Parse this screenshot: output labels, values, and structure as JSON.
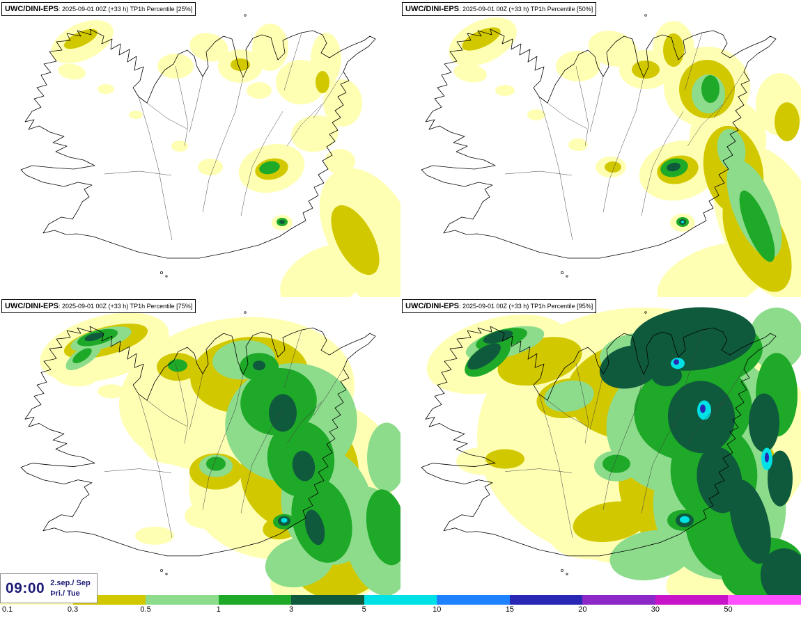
{
  "panels": [
    {
      "key": "25",
      "model": "UWC/DINI-EPS",
      "title": ": 2025-09-01 00Z (+33 h) TP1h Percentile [25%]",
      "blobs": [
        [
          0,
          118,
          60,
          48,
          26,
          -25
        ],
        [
          0,
          103,
          103,
          20,
          11,
          10
        ],
        [
          0,
          152,
          128,
          12,
          7,
          0
        ],
        [
          0,
          252,
          95,
          26,
          18,
          0
        ],
        [
          0,
          300,
          68,
          28,
          20,
          15
        ],
        [
          0,
          345,
          95,
          32,
          24,
          0
        ],
        [
          0,
          388,
          68,
          26,
          34,
          0
        ],
        [
          0,
          372,
          130,
          18,
          12,
          0
        ],
        [
          0,
          432,
          118,
          36,
          32,
          0
        ],
        [
          0,
          468,
          85,
          22,
          38,
          0
        ],
        [
          0,
          492,
          148,
          28,
          34,
          0
        ],
        [
          0,
          452,
          192,
          34,
          26,
          -10
        ],
        [
          0,
          488,
          232,
          22,
          18,
          0
        ],
        [
          0,
          390,
          242,
          48,
          34,
          -15
        ],
        [
          0,
          302,
          240,
          18,
          12,
          0
        ],
        [
          0,
          258,
          210,
          12,
          8,
          0
        ],
        [
          0,
          528,
          330,
          60,
          95,
          -28
        ],
        [
          0,
          468,
          398,
          70,
          42,
          -25
        ],
        [
          0,
          548,
          408,
          40,
          30,
          0
        ],
        [
          0,
          405,
          320,
          15,
          11,
          0
        ],
        [
          0,
          195,
          165,
          10,
          6,
          0
        ],
        [
          1,
          116,
          56,
          26,
          10,
          -25
        ],
        [
          1,
          345,
          93,
          14,
          9,
          0
        ],
        [
          1,
          390,
          243,
          24,
          15,
          -12
        ],
        [
          1,
          510,
          345,
          26,
          55,
          -28
        ],
        [
          1,
          463,
          118,
          10,
          16,
          0
        ],
        [
          3,
          387,
          241,
          15,
          9,
          -12
        ],
        [
          3,
          405,
          319,
          8,
          6,
          0
        ],
        [
          4,
          405,
          319,
          4,
          3,
          0
        ]
      ]
    },
    {
      "key": "50",
      "model": "UWC/DINI-EPS",
      "title": ": 2025-09-01 00Z (+33 h) TP1h Percentile [50%]",
      "blobs": [
        [
          0,
          118,
          60,
          52,
          30,
          -25
        ],
        [
          0,
          100,
          105,
          24,
          13,
          10
        ],
        [
          0,
          150,
          130,
          14,
          8,
          0
        ],
        [
          0,
          255,
          95,
          32,
          22,
          0
        ],
        [
          0,
          305,
          70,
          36,
          25,
          15
        ],
        [
          0,
          352,
          100,
          38,
          28,
          0
        ],
        [
          0,
          392,
          72,
          30,
          42,
          0
        ],
        [
          0,
          440,
          125,
          62,
          58,
          0
        ],
        [
          0,
          470,
          200,
          55,
          60,
          -10
        ],
        [
          0,
          400,
          245,
          58,
          42,
          -15
        ],
        [
          0,
          302,
          240,
          22,
          15,
          0
        ],
        [
          0,
          255,
          208,
          14,
          9,
          0
        ],
        [
          0,
          530,
          320,
          70,
          120,
          -25
        ],
        [
          0,
          450,
          400,
          85,
          45,
          -20
        ],
        [
          0,
          405,
          320,
          18,
          13,
          0
        ],
        [
          0,
          195,
          165,
          13,
          8,
          0
        ],
        [
          0,
          545,
          150,
          35,
          45,
          0
        ],
        [
          1,
          116,
          56,
          30,
          12,
          -25
        ],
        [
          1,
          352,
          100,
          20,
          13,
          0
        ],
        [
          1,
          392,
          72,
          15,
          24,
          0
        ],
        [
          1,
          440,
          128,
          40,
          42,
          0
        ],
        [
          1,
          478,
          245,
          42,
          65,
          -12
        ],
        [
          1,
          512,
          345,
          40,
          80,
          -25
        ],
        [
          1,
          398,
          244,
          30,
          20,
          -12
        ],
        [
          1,
          305,
          240,
          12,
          8,
          0
        ],
        [
          1,
          555,
          175,
          18,
          28,
          0
        ],
        [
          2,
          508,
          300,
          30,
          75,
          -22
        ],
        [
          2,
          442,
          135,
          24,
          28,
          0
        ],
        [
          2,
          475,
          215,
          20,
          30,
          -10
        ],
        [
          3,
          393,
          241,
          20,
          13,
          -12
        ],
        [
          3,
          445,
          128,
          13,
          20,
          0
        ],
        [
          3,
          512,
          325,
          16,
          55,
          -22
        ],
        [
          3,
          405,
          319,
          9,
          7,
          0
        ],
        [
          4,
          392,
          240,
          10,
          6,
          -12
        ],
        [
          4,
          405,
          319,
          5,
          4,
          0
        ],
        [
          5,
          405,
          319,
          2.2,
          1.8,
          0
        ]
      ]
    },
    {
      "key": "75",
      "model": "UWC/DINI-EPS",
      "title": ": 2025-09-01 00Z (+33 h) TP1h Percentile [75%]",
      "blobs": [
        [
          0,
          340,
          140,
          170,
          110,
          -8
        ],
        [
          0,
          420,
          260,
          150,
          115,
          -12
        ],
        [
          0,
          150,
          72,
          95,
          45,
          -15
        ],
        [
          0,
          108,
          112,
          32,
          16,
          5
        ],
        [
          0,
          250,
          212,
          45,
          28,
          0
        ],
        [
          0,
          300,
          312,
          35,
          20,
          -5
        ],
        [
          0,
          222,
          342,
          28,
          13,
          0
        ],
        [
          0,
          480,
          390,
          95,
          50,
          -18
        ],
        [
          0,
          160,
          135,
          20,
          10,
          0
        ],
        [
          1,
          152,
          63,
          62,
          20,
          -15
        ],
        [
          1,
          358,
          112,
          85,
          55,
          -5
        ],
        [
          1,
          430,
          250,
          85,
          85,
          -10
        ],
        [
          1,
          492,
          370,
          75,
          60,
          -22
        ],
        [
          1,
          310,
          250,
          38,
          26,
          0
        ],
        [
          1,
          405,
          330,
          28,
          17,
          -10
        ],
        [
          1,
          255,
          100,
          30,
          20,
          0
        ],
        [
          2,
          418,
          180,
          95,
          85,
          -10
        ],
        [
          2,
          470,
          300,
          65,
          85,
          -15
        ],
        [
          2,
          350,
          90,
          45,
          28,
          -5
        ],
        [
          2,
          145,
          60,
          45,
          14,
          -15
        ],
        [
          2,
          310,
          242,
          24,
          16,
          0
        ],
        [
          2,
          430,
          380,
          50,
          35,
          -15
        ],
        [
          2,
          540,
          350,
          45,
          80,
          -15
        ],
        [
          2,
          555,
          230,
          28,
          50,
          0
        ],
        [
          2,
          120,
          85,
          30,
          12,
          -35
        ],
        [
          3,
          400,
          150,
          55,
          48,
          -10
        ],
        [
          3,
          432,
          232,
          48,
          55,
          -10
        ],
        [
          3,
          462,
          320,
          42,
          62,
          -15
        ],
        [
          3,
          372,
          100,
          28,
          20,
          0
        ],
        [
          3,
          140,
          58,
          30,
          10,
          -15
        ],
        [
          3,
          310,
          239,
          14,
          10,
          0
        ],
        [
          3,
          408,
          322,
          16,
          11,
          0
        ],
        [
          3,
          255,
          98,
          14,
          9,
          0
        ],
        [
          3,
          555,
          330,
          28,
          55,
          -10
        ],
        [
          3,
          118,
          84,
          16,
          7,
          -35
        ],
        [
          4,
          406,
          166,
          20,
          27,
          0
        ],
        [
          4,
          436,
          242,
          16,
          22,
          -10
        ],
        [
          4,
          452,
          330,
          13,
          26,
          -15
        ],
        [
          4,
          408,
          321,
          9,
          7,
          0
        ],
        [
          4,
          372,
          98,
          9,
          7,
          0
        ],
        [
          4,
          135,
          57,
          14,
          5,
          -15
        ],
        [
          5,
          408,
          320,
          4.5,
          3.5,
          0
        ]
      ]
    },
    {
      "key": "95",
      "model": "UWC/DINI-EPS",
      "title": ": 2025-09-01 00Z (+33 h) TP1h Percentile [95%]",
      "blobs": [
        [
          0,
          350,
          200,
          240,
          185,
          0
        ],
        [
          0,
          140,
          82,
          105,
          52,
          -15
        ],
        [
          0,
          298,
          332,
          85,
          42,
          -10
        ],
        [
          0,
          480,
          400,
          100,
          42,
          -10
        ],
        [
          0,
          120,
          235,
          40,
          20,
          0
        ],
        [
          1,
          362,
          132,
          125,
          75,
          -5
        ],
        [
          1,
          428,
          262,
          115,
          105,
          -10
        ],
        [
          1,
          200,
          92,
          62,
          32,
          -15
        ],
        [
          1,
          302,
          322,
          55,
          28,
          -10
        ],
        [
          1,
          150,
          232,
          28,
          14,
          0
        ],
        [
          1,
          240,
          145,
          45,
          28,
          -10
        ],
        [
          2,
          420,
          180,
          125,
          105,
          -10
        ],
        [
          2,
          458,
          300,
          95,
          105,
          -10
        ],
        [
          2,
          348,
          82,
          62,
          32,
          -5
        ],
        [
          2,
          150,
          66,
          58,
          20,
          -15
        ],
        [
          2,
          242,
          142,
          36,
          22,
          -10
        ],
        [
          2,
          310,
          242,
          32,
          22,
          0
        ],
        [
          2,
          360,
          370,
          60,
          35,
          -10
        ],
        [
          2,
          540,
          60,
          40,
          45,
          0
        ],
        [
          3,
          420,
          162,
          85,
          72,
          -10
        ],
        [
          3,
          450,
          252,
          62,
          72,
          -10
        ],
        [
          3,
          462,
          330,
          52,
          72,
          -15
        ],
        [
          3,
          360,
          92,
          38,
          24,
          0
        ],
        [
          3,
          145,
          60,
          38,
          13,
          -15
        ],
        [
          3,
          310,
          239,
          20,
          13,
          0
        ],
        [
          3,
          405,
          320,
          22,
          15,
          0
        ],
        [
          3,
          540,
          140,
          30,
          60,
          0
        ],
        [
          3,
          430,
          80,
          90,
          50,
          -5
        ],
        [
          3,
          125,
          88,
          38,
          18,
          -35
        ],
        [
          3,
          520,
          390,
          60,
          45,
          -10
        ],
        [
          4,
          432,
          172,
          48,
          52,
          -10
        ],
        [
          4,
          458,
          262,
          32,
          48,
          -10
        ],
        [
          4,
          502,
          322,
          26,
          62,
          -15
        ],
        [
          4,
          382,
          112,
          22,
          16,
          0
        ],
        [
          4,
          140,
          57,
          22,
          8,
          -15
        ],
        [
          4,
          408,
          320,
          13,
          10,
          0
        ],
        [
          4,
          522,
          180,
          22,
          42,
          0
        ],
        [
          4,
          545,
          260,
          18,
          40,
          0
        ],
        [
          4,
          420,
          60,
          90,
          45,
          -5
        ],
        [
          4,
          330,
          100,
          45,
          30,
          -15
        ],
        [
          4,
          120,
          85,
          28,
          12,
          -35
        ],
        [
          4,
          552,
          400,
          35,
          40,
          -10
        ],
        [
          5,
          436,
          162,
          10,
          14,
          0
        ],
        [
          5,
          408,
          319,
          7,
          5,
          0
        ],
        [
          5,
          526,
          232,
          8,
          16,
          0
        ],
        [
          5,
          398,
          95,
          10,
          8,
          0
        ],
        [
          7,
          434,
          160,
          4,
          6,
          0
        ],
        [
          7,
          526,
          230,
          3,
          7,
          0
        ],
        [
          7,
          396,
          93,
          4,
          4,
          0
        ]
      ]
    }
  ],
  "timebox": {
    "time": "09:00",
    "date": "2.sep./ Sep",
    "day": "Þri./ Tue"
  },
  "colorbar": {
    "ticks": [
      "0.1",
      "0.3",
      "0.5",
      "1",
      "3",
      "5",
      "10",
      "15",
      "20",
      "30",
      "50"
    ],
    "colors": [
      "#ffffb4",
      "#d2c800",
      "#8cdc8c",
      "#1eaa28",
      "#0f5a3c",
      "#00e1e6",
      "#1e82ff",
      "#2828b4",
      "#8c28c8",
      "#c814c8",
      "#ff50ff"
    ]
  }
}
